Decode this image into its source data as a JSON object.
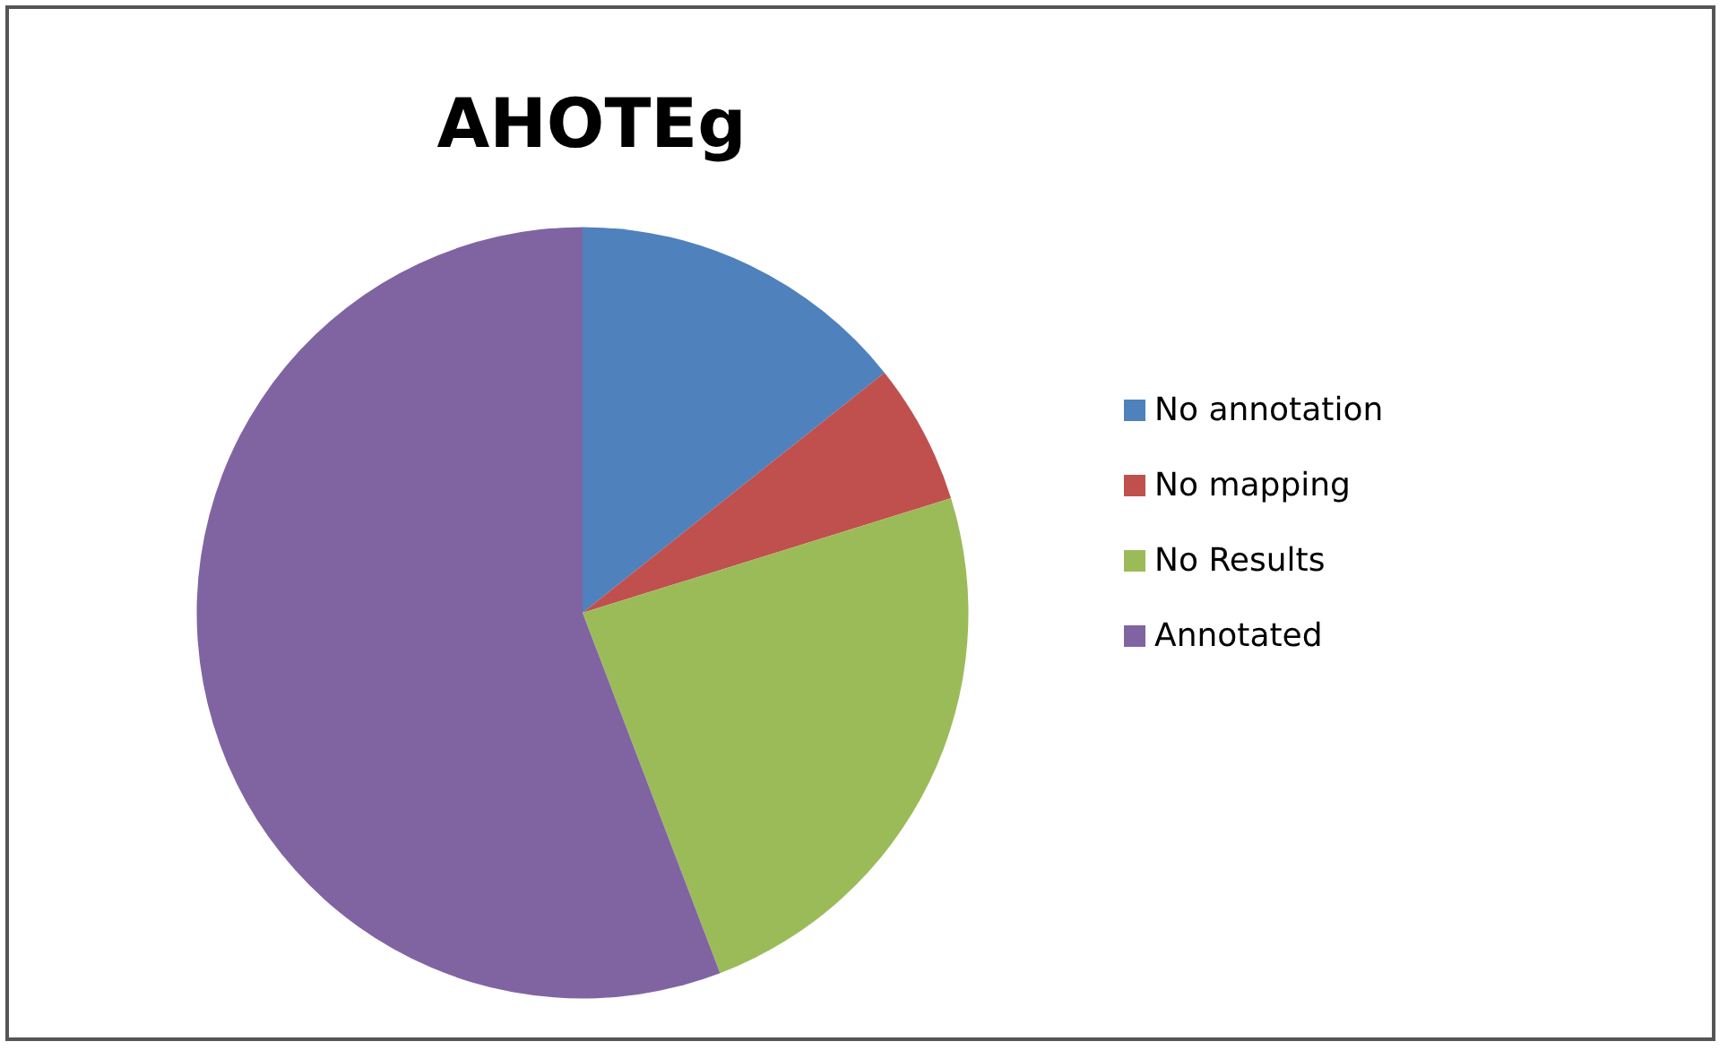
{
  "chart_data": {
    "type": "pie",
    "title": "AHOTEg",
    "categories": [
      "No annotation",
      "No mapping",
      "No Results",
      "Annotated"
    ],
    "values": [
      14.3,
      5.9,
      24.0,
      55.8
    ],
    "colors": [
      "#4f81bd",
      "#c0504d",
      "#9bbb59",
      "#8064a2"
    ],
    "legend": "right"
  }
}
